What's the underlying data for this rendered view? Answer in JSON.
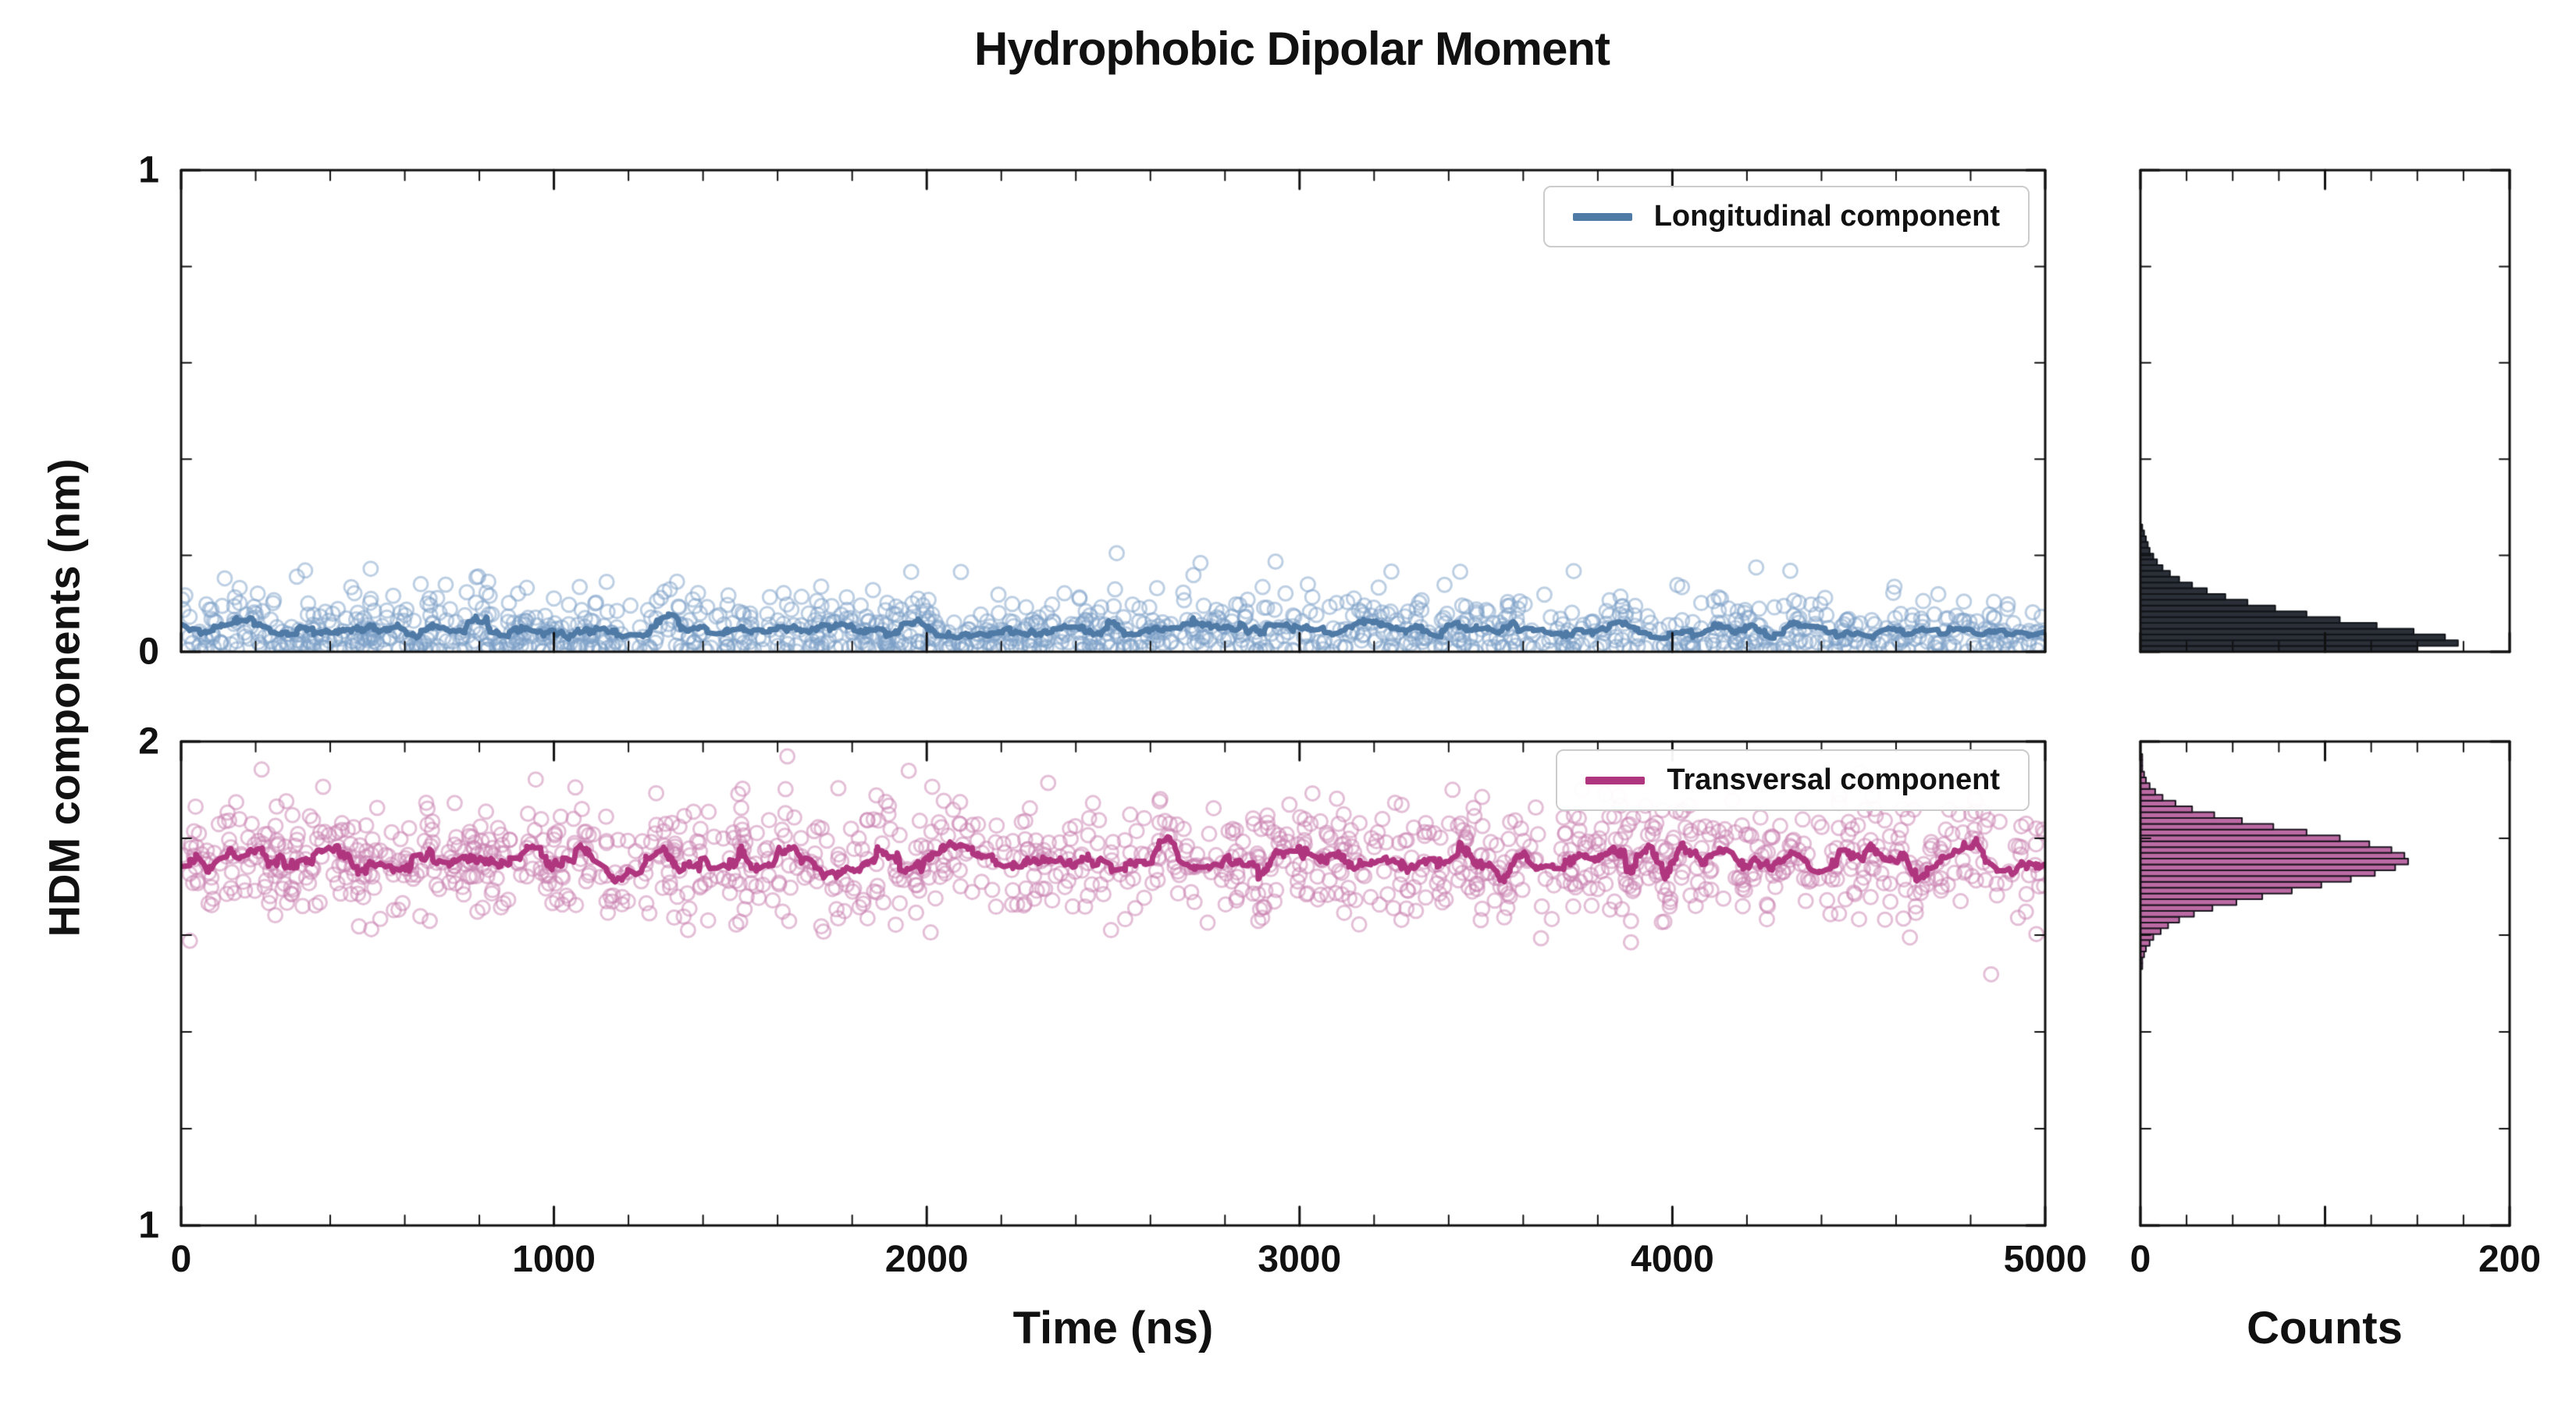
{
  "chart_data": {
    "type": "scatter",
    "title": "Hydrophobic Dipolar Moment",
    "xlabel": "Time (ns)",
    "ylabel": "HDM components (nm)",
    "hist_xlabel": "Counts",
    "x_range": [
      0,
      5000
    ],
    "x_ticks": [
      0,
      1000,
      2000,
      3000,
      4000,
      5000
    ],
    "x_minor_step": 200,
    "hist_count_range": [
      0,
      200
    ],
    "hist_x_ticks": [
      0,
      200
    ],
    "hist_x_majors": [
      0,
      100,
      200
    ],
    "hist_x_minor_step": 25,
    "legend_position": "upper right",
    "panels": [
      {
        "name": "Longitudinal component",
        "position": "top",
        "y_range": [
          0,
          1
        ],
        "y_ticks": [
          0,
          1
        ],
        "y_minor_step": 0.2,
        "scatter": {
          "n_points": 1300,
          "marker": "open-circle",
          "color": "#7b9fc7",
          "opacity": 0.5,
          "distribution": "half-normal",
          "center": 0.0,
          "sigma": 0.058,
          "mean_level": 0.046
        },
        "rolling_mean_line": {
          "color": "#4f7aa6",
          "level": 0.046,
          "window": 15
        },
        "histogram": {
          "orientation": "horizontal",
          "bar_color": "#2a2f38",
          "edge_color": "#111419",
          "bin_start": 0.0,
          "bin_width": 0.012,
          "counts": [
            150,
            172,
            165,
            148,
            128,
            108,
            90,
            73,
            58,
            46,
            36,
            28,
            21,
            16,
            12,
            9,
            7,
            5,
            4,
            3,
            2,
            1
          ]
        }
      },
      {
        "name": "Transversal component",
        "position": "bottom",
        "y_range": [
          1,
          2
        ],
        "y_ticks": [
          1,
          2
        ],
        "y_minor_step": 0.2,
        "scatter": {
          "n_points": 1300,
          "marker": "open-circle",
          "color": "#c97fb0",
          "opacity": 0.5,
          "distribution": "normal",
          "center": 1.755,
          "sigma": 0.062,
          "mean_level": 1.755
        },
        "rolling_mean_line": {
          "color": "#b0357f",
          "level": 1.755,
          "window": 15
        },
        "histogram": {
          "orientation": "horizontal",
          "bar_color": "#bc6aa4",
          "edge_color": "#1c1520",
          "bin_start": 1.53,
          "bin_width": 0.012,
          "counts": [
            1,
            1,
            2,
            3,
            5,
            7,
            11,
            15,
            21,
            29,
            39,
            52,
            66,
            82,
            98,
            114,
            127,
            138,
            145,
            143,
            136,
            124,
            108,
            90,
            72,
            55,
            40,
            28,
            19,
            12,
            8,
            5,
            3,
            2,
            1,
            1,
            1,
            0,
            0,
            0
          ]
        }
      }
    ]
  }
}
